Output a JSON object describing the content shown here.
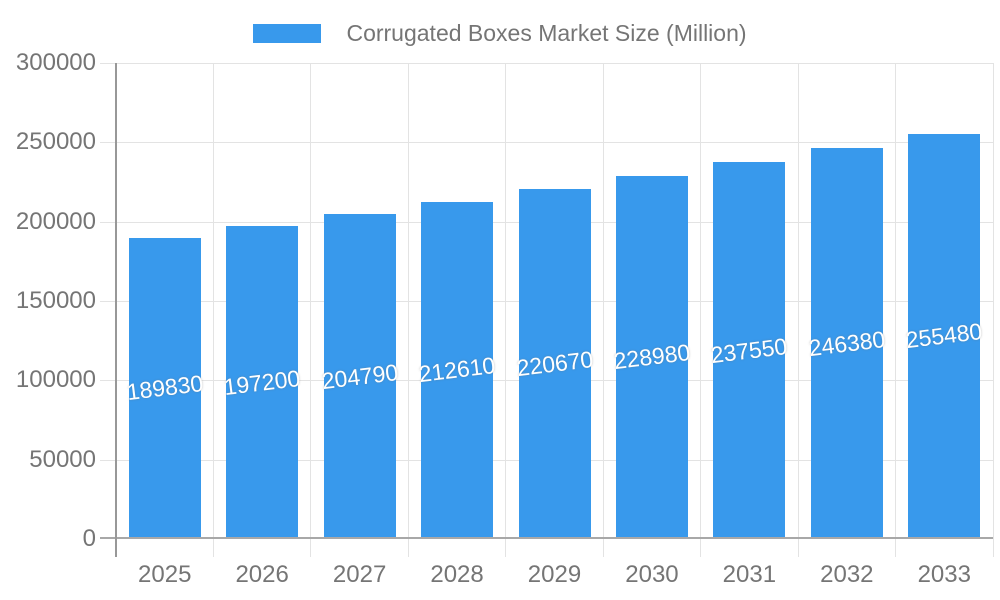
{
  "chart_data": {
    "type": "bar",
    "series_name": "Corrugated Boxes Market Size (Million)",
    "categories": [
      "2025",
      "2026",
      "2027",
      "2028",
      "2029",
      "2030",
      "2031",
      "2032",
      "2033"
    ],
    "values": [
      189830,
      197200,
      204790,
      212610,
      220670,
      228980,
      237550,
      246380,
      255480
    ],
    "bar_value_labels": [
      "189830",
      "197200",
      "204790",
      "212610",
      "220670",
      "228980",
      "237550",
      "246380",
      "255480"
    ],
    "y_tick_labels": [
      "0",
      "50000",
      "100000",
      "150000",
      "200000",
      "250000",
      "300000"
    ],
    "ylim": [
      0,
      300000
    ],
    "xlabel": "",
    "ylabel": "",
    "grid": true,
    "legend_position": "top-center",
    "colors": {
      "bar": "#3899ec",
      "bar_label_text": "#ffffff",
      "axis_text": "#757575",
      "gridline": "#e3e3e3",
      "tick_line": "#dcdcdc",
      "axis_line": "#989898",
      "baseline": "#a8a8a8",
      "background": "#ffffff"
    }
  }
}
